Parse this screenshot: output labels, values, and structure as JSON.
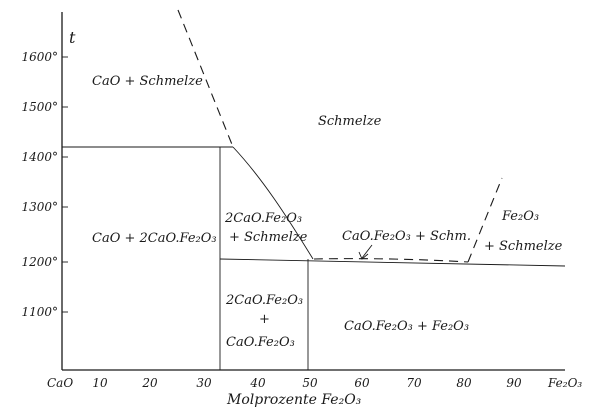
{
  "diagram": {
    "t_label": "t",
    "y_ticks": [
      "1600°",
      "1500°",
      "1400°",
      "1300°",
      "1200°",
      "1100°"
    ],
    "x_ticks": [
      "CaO",
      "10",
      "20",
      "30",
      "40",
      "50",
      "60",
      "70",
      "80",
      "90",
      "Fe₂O₃"
    ],
    "x_axis_title": "Molprozente Fe₂O₃",
    "regions": {
      "cao_schmelze": "CaO + Schmelze",
      "schmelze": "Schmelze",
      "cao_2cao": "CaO + 2CaO.Fe₂O₃",
      "dicalcium_schmelze_1": "2CaO.Fe₂O₃",
      "dicalcium_schmelze_2": "+ Schmelze",
      "cao_fe_schm": "CaO.Fe₂O₃ + Schm.",
      "fe2o3_schmelze_1": "Fe₂O₃",
      "fe2o3_schmelze_2": "+ Schmelze",
      "dicalcium_cafe_1": "2CaO.Fe₂O₃",
      "dicalcium_cafe_2": "+",
      "dicalcium_cafe_3": "CaO.Fe₂O₃",
      "cafe_fe": "CaO.Fe₂O₃ + Fe₂O₃"
    }
  }
}
